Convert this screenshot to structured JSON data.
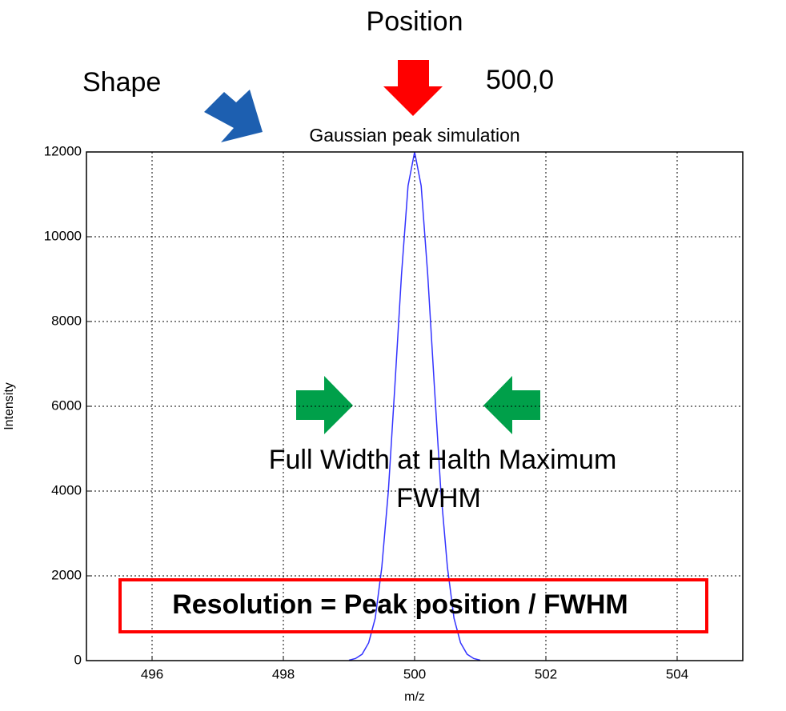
{
  "chart_data": {
    "type": "line",
    "title": "Gaussian peak simulation",
    "xlabel": "m/z",
    "ylabel": "Intensity",
    "x": [
      499.0,
      499.1,
      499.2,
      499.3,
      499.4,
      499.5,
      499.6,
      499.7,
      499.8,
      499.9,
      500.0,
      500.1,
      500.2,
      500.3,
      500.4,
      500.5,
      500.6,
      500.7,
      500.8,
      500.9,
      501.0
    ],
    "values": [
      10,
      50,
      150,
      420,
      1000,
      2200,
      4000,
      6500,
      9100,
      11200,
      12000,
      11200,
      9100,
      6500,
      4000,
      2200,
      1000,
      420,
      150,
      50,
      10
    ],
    "color": "#3333ff",
    "xlim": [
      495,
      505
    ],
    "xticks": [
      496,
      498,
      500,
      502,
      504
    ],
    "ylim": [
      0,
      12000
    ],
    "yticks": [
      0,
      2000,
      4000,
      6000,
      8000,
      10000,
      12000
    ],
    "grid": true,
    "annotations": {
      "position": "Position",
      "position_value": "500,0",
      "shape": "Shape",
      "fwhm_long": "Full Width at Halth Maximum",
      "fwhm": "FWHM",
      "resolution": "Resolution = Peak position / FWHM"
    }
  }
}
